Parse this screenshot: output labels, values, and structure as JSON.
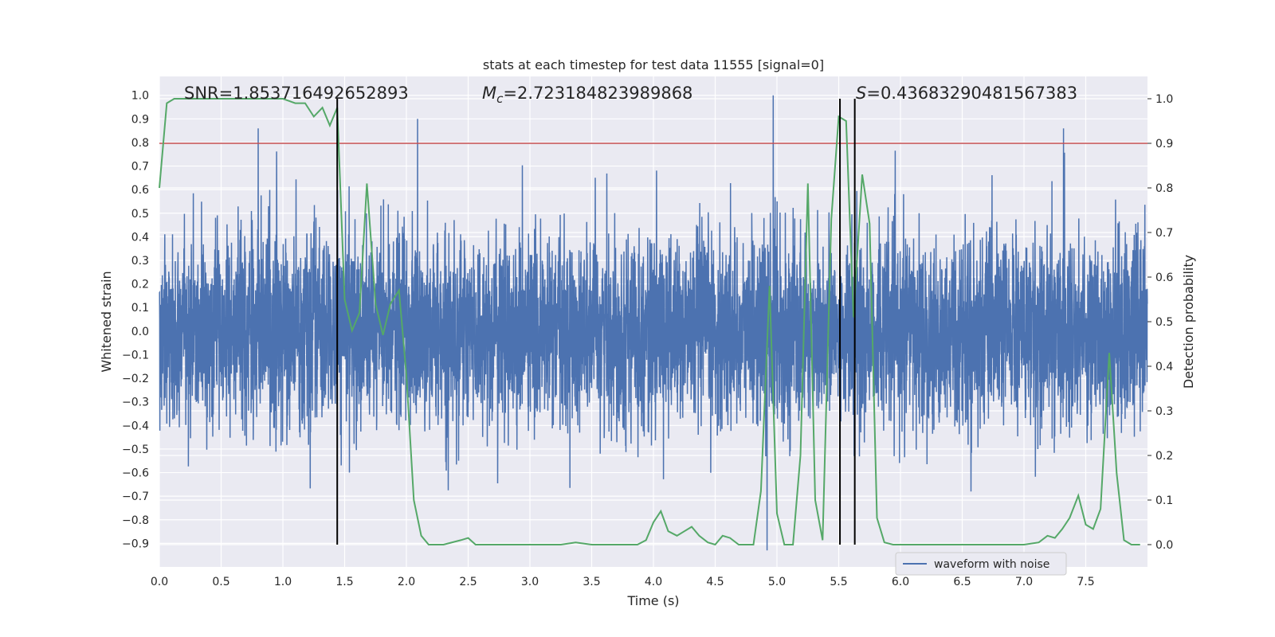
{
  "chart_data": {
    "type": "line",
    "title": "stats at each timestep for test data 11555 [signal=0]",
    "xlabel": "Time (s)",
    "ylabel_left": "Whitened strain",
    "ylabel_right": "Detection probability",
    "xlim": [
      0.0,
      8.0
    ],
    "ylim_left": [
      -1.0,
      1.08
    ],
    "ylim_right": [
      -0.05,
      1.05
    ],
    "x_ticks": [
      "0.0",
      "0.5",
      "1.0",
      "1.5",
      "2.0",
      "2.5",
      "3.0",
      "3.5",
      "4.0",
      "4.5",
      "5.0",
      "5.5",
      "6.0",
      "6.5",
      "7.0",
      "7.5"
    ],
    "y_ticks_left": [
      "-0.9",
      "-0.8",
      "-0.7",
      "-0.6",
      "-0.5",
      "-0.4",
      "-0.3",
      "-0.2",
      "-0.1",
      "0.0",
      "0.1",
      "0.2",
      "0.3",
      "0.4",
      "0.5",
      "0.6",
      "0.7",
      "0.8",
      "0.9",
      "1.0"
    ],
    "y_ticks_right": [
      "0.0",
      "0.1",
      "0.2",
      "0.3",
      "0.4",
      "0.5",
      "0.6",
      "0.7",
      "0.8",
      "0.9",
      "1.0"
    ],
    "threshold_right": 0.9,
    "vertical_lines_x": [
      1.44,
      5.51,
      5.63
    ],
    "annotations": {
      "snr_label": "SNR=1.853716492652893",
      "mc_symbol": "M",
      "mc_sub": "c",
      "mc_value": "=2.723184823989868",
      "s_symbol": "S",
      "s_value": "=0.43683290481567383"
    },
    "legend": [
      "waveform with noise"
    ],
    "colors": {
      "waveform": "#4c72b0",
      "probability": "#55a868",
      "threshold": "#c44e52",
      "vlines": "#000000",
      "axes_bg": "#eaeaf2",
      "grid": "#ffffff"
    },
    "series": [
      {
        "name": "waveform with noise",
        "axis": "left",
        "noise_std": 0.2,
        "duration": 8.0,
        "highlight_peaks": [
          {
            "x": 4.97,
            "y": 1.0
          },
          {
            "x": 4.92,
            "y": -0.93
          },
          {
            "x": 2.09,
            "y": 0.9
          },
          {
            "x": 0.8,
            "y": 0.86
          },
          {
            "x": 7.32,
            "y": 0.86
          }
        ]
      },
      {
        "name": "detection probability",
        "axis": "right",
        "x": [
          0.0,
          0.06,
          0.12,
          0.25,
          0.5,
          0.75,
          0.95,
          1.0,
          1.1,
          1.18,
          1.25,
          1.32,
          1.38,
          1.44,
          1.5,
          1.56,
          1.62,
          1.68,
          1.75,
          1.81,
          1.87,
          1.94,
          2.0,
          2.06,
          2.12,
          2.18,
          2.3,
          2.44,
          2.5,
          2.56,
          2.62,
          2.75,
          2.88,
          3.0,
          3.12,
          3.25,
          3.37,
          3.5,
          3.62,
          3.75,
          3.87,
          3.94,
          4.0,
          4.06,
          4.12,
          4.19,
          4.25,
          4.31,
          4.37,
          4.44,
          4.5,
          4.56,
          4.62,
          4.69,
          4.75,
          4.81,
          4.87,
          4.94,
          5.0,
          5.06,
          5.13,
          5.19,
          5.25,
          5.31,
          5.37,
          5.44,
          5.5,
          5.56,
          5.62,
          5.69,
          5.75,
          5.81,
          5.87,
          5.94,
          6.0,
          6.06,
          6.25,
          6.5,
          6.75,
          7.0,
          7.12,
          7.19,
          7.25,
          7.31,
          7.37,
          7.44,
          7.5,
          7.56,
          7.62,
          7.69,
          7.75,
          7.81,
          7.87,
          7.94
        ],
        "y": [
          0.8,
          0.99,
          1.0,
          1.0,
          1.0,
          1.0,
          1.0,
          1.0,
          0.99,
          0.99,
          0.96,
          0.98,
          0.94,
          0.98,
          0.55,
          0.48,
          0.52,
          0.81,
          0.54,
          0.47,
          0.54,
          0.57,
          0.38,
          0.1,
          0.02,
          0.0,
          0.0,
          0.01,
          0.015,
          0.0,
          0.0,
          0.0,
          0.0,
          0.0,
          0.0,
          0.0,
          0.005,
          0.0,
          0.0,
          0.0,
          0.0,
          0.01,
          0.05,
          0.075,
          0.03,
          0.02,
          0.03,
          0.04,
          0.02,
          0.005,
          0.0,
          0.02,
          0.015,
          0.0,
          0.0,
          0.0,
          0.12,
          0.58,
          0.07,
          0.0,
          0.0,
          0.2,
          0.81,
          0.1,
          0.01,
          0.73,
          0.96,
          0.95,
          0.51,
          0.83,
          0.72,
          0.06,
          0.005,
          0.0,
          0.0,
          0.0,
          0.0,
          0.0,
          0.0,
          0.0,
          0.005,
          0.02,
          0.015,
          0.035,
          0.06,
          0.11,
          0.045,
          0.035,
          0.08,
          0.43,
          0.16,
          0.01,
          0.0,
          0.0
        ]
      }
    ]
  }
}
